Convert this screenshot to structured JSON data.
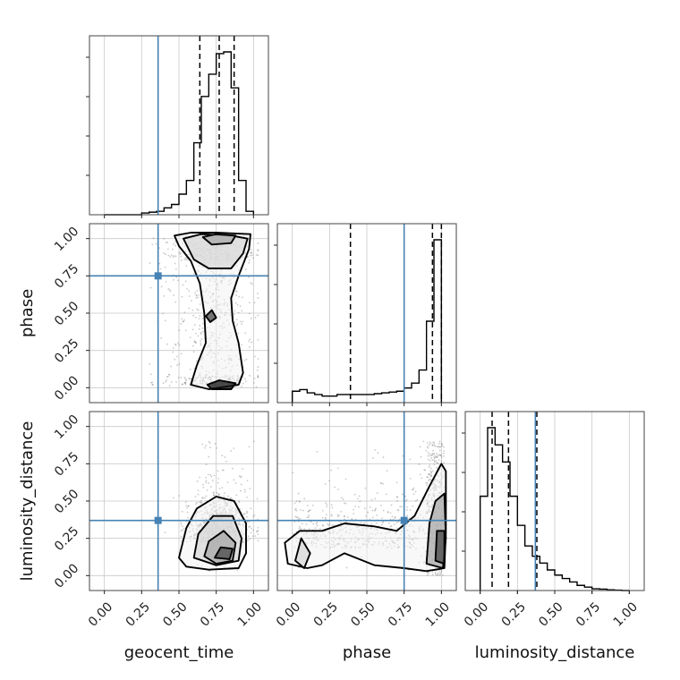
{
  "chart_data": {
    "type": "corner",
    "parameters": [
      "geocent_time",
      "phase",
      "luminosity_distance"
    ],
    "axis_range": [
      -0.1,
      1.1
    ],
    "ticks": [
      0.0,
      0.25,
      0.5,
      0.75,
      1.0
    ],
    "tick_labels": [
      "0.00",
      "0.25",
      "0.50",
      "0.75",
      "1.00"
    ],
    "grid": true,
    "truths": {
      "geocent_time": 0.36,
      "phase": 0.75,
      "luminosity_distance": 0.37
    },
    "truth_color": "#4682b4",
    "quantiles": {
      "geocent_time": [
        0.64,
        0.77,
        0.87
      ],
      "phase": [
        0.39,
        0.94,
        1.0
      ],
      "luminosity_distance": [
        0.08,
        0.19,
        0.38
      ]
    },
    "histograms": {
      "geocent_time": {
        "edges": [
          0.0,
          0.05,
          0.1,
          0.15,
          0.2,
          0.25,
          0.3,
          0.35,
          0.4,
          0.45,
          0.5,
          0.55,
          0.6,
          0.65,
          0.7,
          0.75,
          0.8,
          0.85,
          0.9,
          0.95,
          1.0
        ],
        "counts": [
          0,
          0,
          0,
          0,
          0,
          0.01,
          0.015,
          0.02,
          0.04,
          0.06,
          0.12,
          0.2,
          0.42,
          0.69,
          0.82,
          0.94,
          0.95,
          0.74,
          0.2,
          0.02
        ]
      },
      "phase": {
        "edges": [
          0.0,
          0.05,
          0.1,
          0.15,
          0.2,
          0.25,
          0.3,
          0.35,
          0.4,
          0.45,
          0.5,
          0.55,
          0.6,
          0.65,
          0.7,
          0.75,
          0.8,
          0.85,
          0.9,
          0.95,
          1.0
        ],
        "counts": [
          0.07,
          0.08,
          0.06,
          0.05,
          0.04,
          0.04,
          0.05,
          0.05,
          0.05,
          0.05,
          0.05,
          0.055,
          0.06,
          0.065,
          0.07,
          0.09,
          0.12,
          0.2,
          0.5,
          1.0
        ]
      },
      "luminosity_distance": {
        "edges": [
          0.0,
          0.05,
          0.1,
          0.15,
          0.2,
          0.25,
          0.3,
          0.35,
          0.4,
          0.45,
          0.5,
          0.55,
          0.6,
          0.65,
          0.7,
          0.75,
          0.8,
          0.85,
          0.9,
          0.95,
          1.0
        ],
        "counts": [
          0.55,
          0.95,
          0.85,
          0.75,
          0.55,
          0.38,
          0.26,
          0.2,
          0.16,
          0.12,
          0.09,
          0.07,
          0.05,
          0.03,
          0.02,
          0.01,
          0.008,
          0.004,
          0.002,
          0.0
        ]
      }
    },
    "contours": {
      "phase_vs_geocent_time": [
        [
          [
            0.47,
            1.02
          ],
          [
            0.58,
            1.04
          ],
          [
            0.75,
            1.04
          ],
          [
            0.98,
            1.03
          ],
          [
            0.97,
            0.93
          ],
          [
            0.9,
            0.75
          ],
          [
            0.85,
            0.6
          ],
          [
            0.86,
            0.45
          ],
          [
            0.9,
            0.3
          ],
          [
            0.93,
            0.1
          ],
          [
            0.9,
            0.02
          ],
          [
            0.7,
            -0.01
          ],
          [
            0.58,
            0.02
          ],
          [
            0.62,
            0.15
          ],
          [
            0.68,
            0.3
          ],
          [
            0.67,
            0.5
          ],
          [
            0.64,
            0.7
          ],
          [
            0.58,
            0.85
          ],
          [
            0.5,
            0.95
          ]
        ],
        [
          [
            0.53,
            1.0
          ],
          [
            0.65,
            1.03
          ],
          [
            0.85,
            1.02
          ],
          [
            0.96,
            1.0
          ],
          [
            0.93,
            0.9
          ],
          [
            0.85,
            0.8
          ],
          [
            0.7,
            0.8
          ],
          [
            0.6,
            0.86
          ]
        ],
        [
          [
            0.66,
            1.01
          ],
          [
            0.75,
            1.03
          ],
          [
            0.88,
            1.02
          ],
          [
            0.85,
            0.97
          ],
          [
            0.72,
            0.96
          ]
        ],
        [
          [
            0.68,
            0.48
          ],
          [
            0.72,
            0.52
          ],
          [
            0.75,
            0.47
          ],
          [
            0.71,
            0.44
          ]
        ],
        [
          [
            0.69,
            0.02
          ],
          [
            0.77,
            0.05
          ],
          [
            0.88,
            0.03
          ],
          [
            0.85,
            -0.01
          ],
          [
            0.72,
            -0.01
          ]
        ]
      ],
      "luminosity_distance_vs_geocent_time": [
        [
          [
            0.5,
            0.12
          ],
          [
            0.55,
            0.32
          ],
          [
            0.62,
            0.45
          ],
          [
            0.75,
            0.53
          ],
          [
            0.87,
            0.5
          ],
          [
            0.95,
            0.35
          ],
          [
            0.95,
            0.15
          ],
          [
            0.9,
            0.05
          ],
          [
            0.7,
            0.04
          ],
          [
            0.55,
            0.06
          ]
        ],
        [
          [
            0.6,
            0.12
          ],
          [
            0.63,
            0.28
          ],
          [
            0.73,
            0.4
          ],
          [
            0.86,
            0.4
          ],
          [
            0.92,
            0.25
          ],
          [
            0.9,
            0.1
          ],
          [
            0.75,
            0.07
          ]
        ],
        [
          [
            0.67,
            0.13
          ],
          [
            0.7,
            0.23
          ],
          [
            0.8,
            0.3
          ],
          [
            0.88,
            0.22
          ],
          [
            0.86,
            0.1
          ],
          [
            0.75,
            0.08
          ]
        ],
        [
          [
            0.74,
            0.12
          ],
          [
            0.78,
            0.19
          ],
          [
            0.86,
            0.18
          ],
          [
            0.84,
            0.11
          ]
        ]
      ],
      "luminosity_distance_vs_phase": [
        [
          [
            -0.05,
            0.22
          ],
          [
            0.05,
            0.3
          ],
          [
            0.2,
            0.3
          ],
          [
            0.35,
            0.35
          ],
          [
            0.55,
            0.33
          ],
          [
            0.7,
            0.3
          ],
          [
            0.82,
            0.4
          ],
          [
            0.92,
            0.6
          ],
          [
            1.0,
            0.75
          ],
          [
            1.03,
            0.7
          ],
          [
            1.03,
            0.3
          ],
          [
            1.02,
            0.05
          ],
          [
            0.9,
            0.03
          ],
          [
            0.75,
            0.05
          ],
          [
            0.55,
            0.07
          ],
          [
            0.35,
            0.15
          ],
          [
            0.2,
            0.07
          ],
          [
            0.1,
            0.05
          ],
          [
            -0.03,
            0.08
          ]
        ],
        [
          [
            0.02,
            0.1
          ],
          [
            0.06,
            0.25
          ],
          [
            0.12,
            0.15
          ],
          [
            0.08,
            0.05
          ]
        ],
        [
          [
            0.9,
            0.08
          ],
          [
            0.92,
            0.35
          ],
          [
            0.96,
            0.5
          ],
          [
            1.02,
            0.55
          ],
          [
            1.03,
            0.25
          ],
          [
            1.01,
            0.05
          ]
        ],
        [
          [
            0.96,
            0.1
          ],
          [
            0.97,
            0.3
          ],
          [
            1.02,
            0.3
          ],
          [
            1.02,
            0.08
          ]
        ]
      ]
    }
  }
}
